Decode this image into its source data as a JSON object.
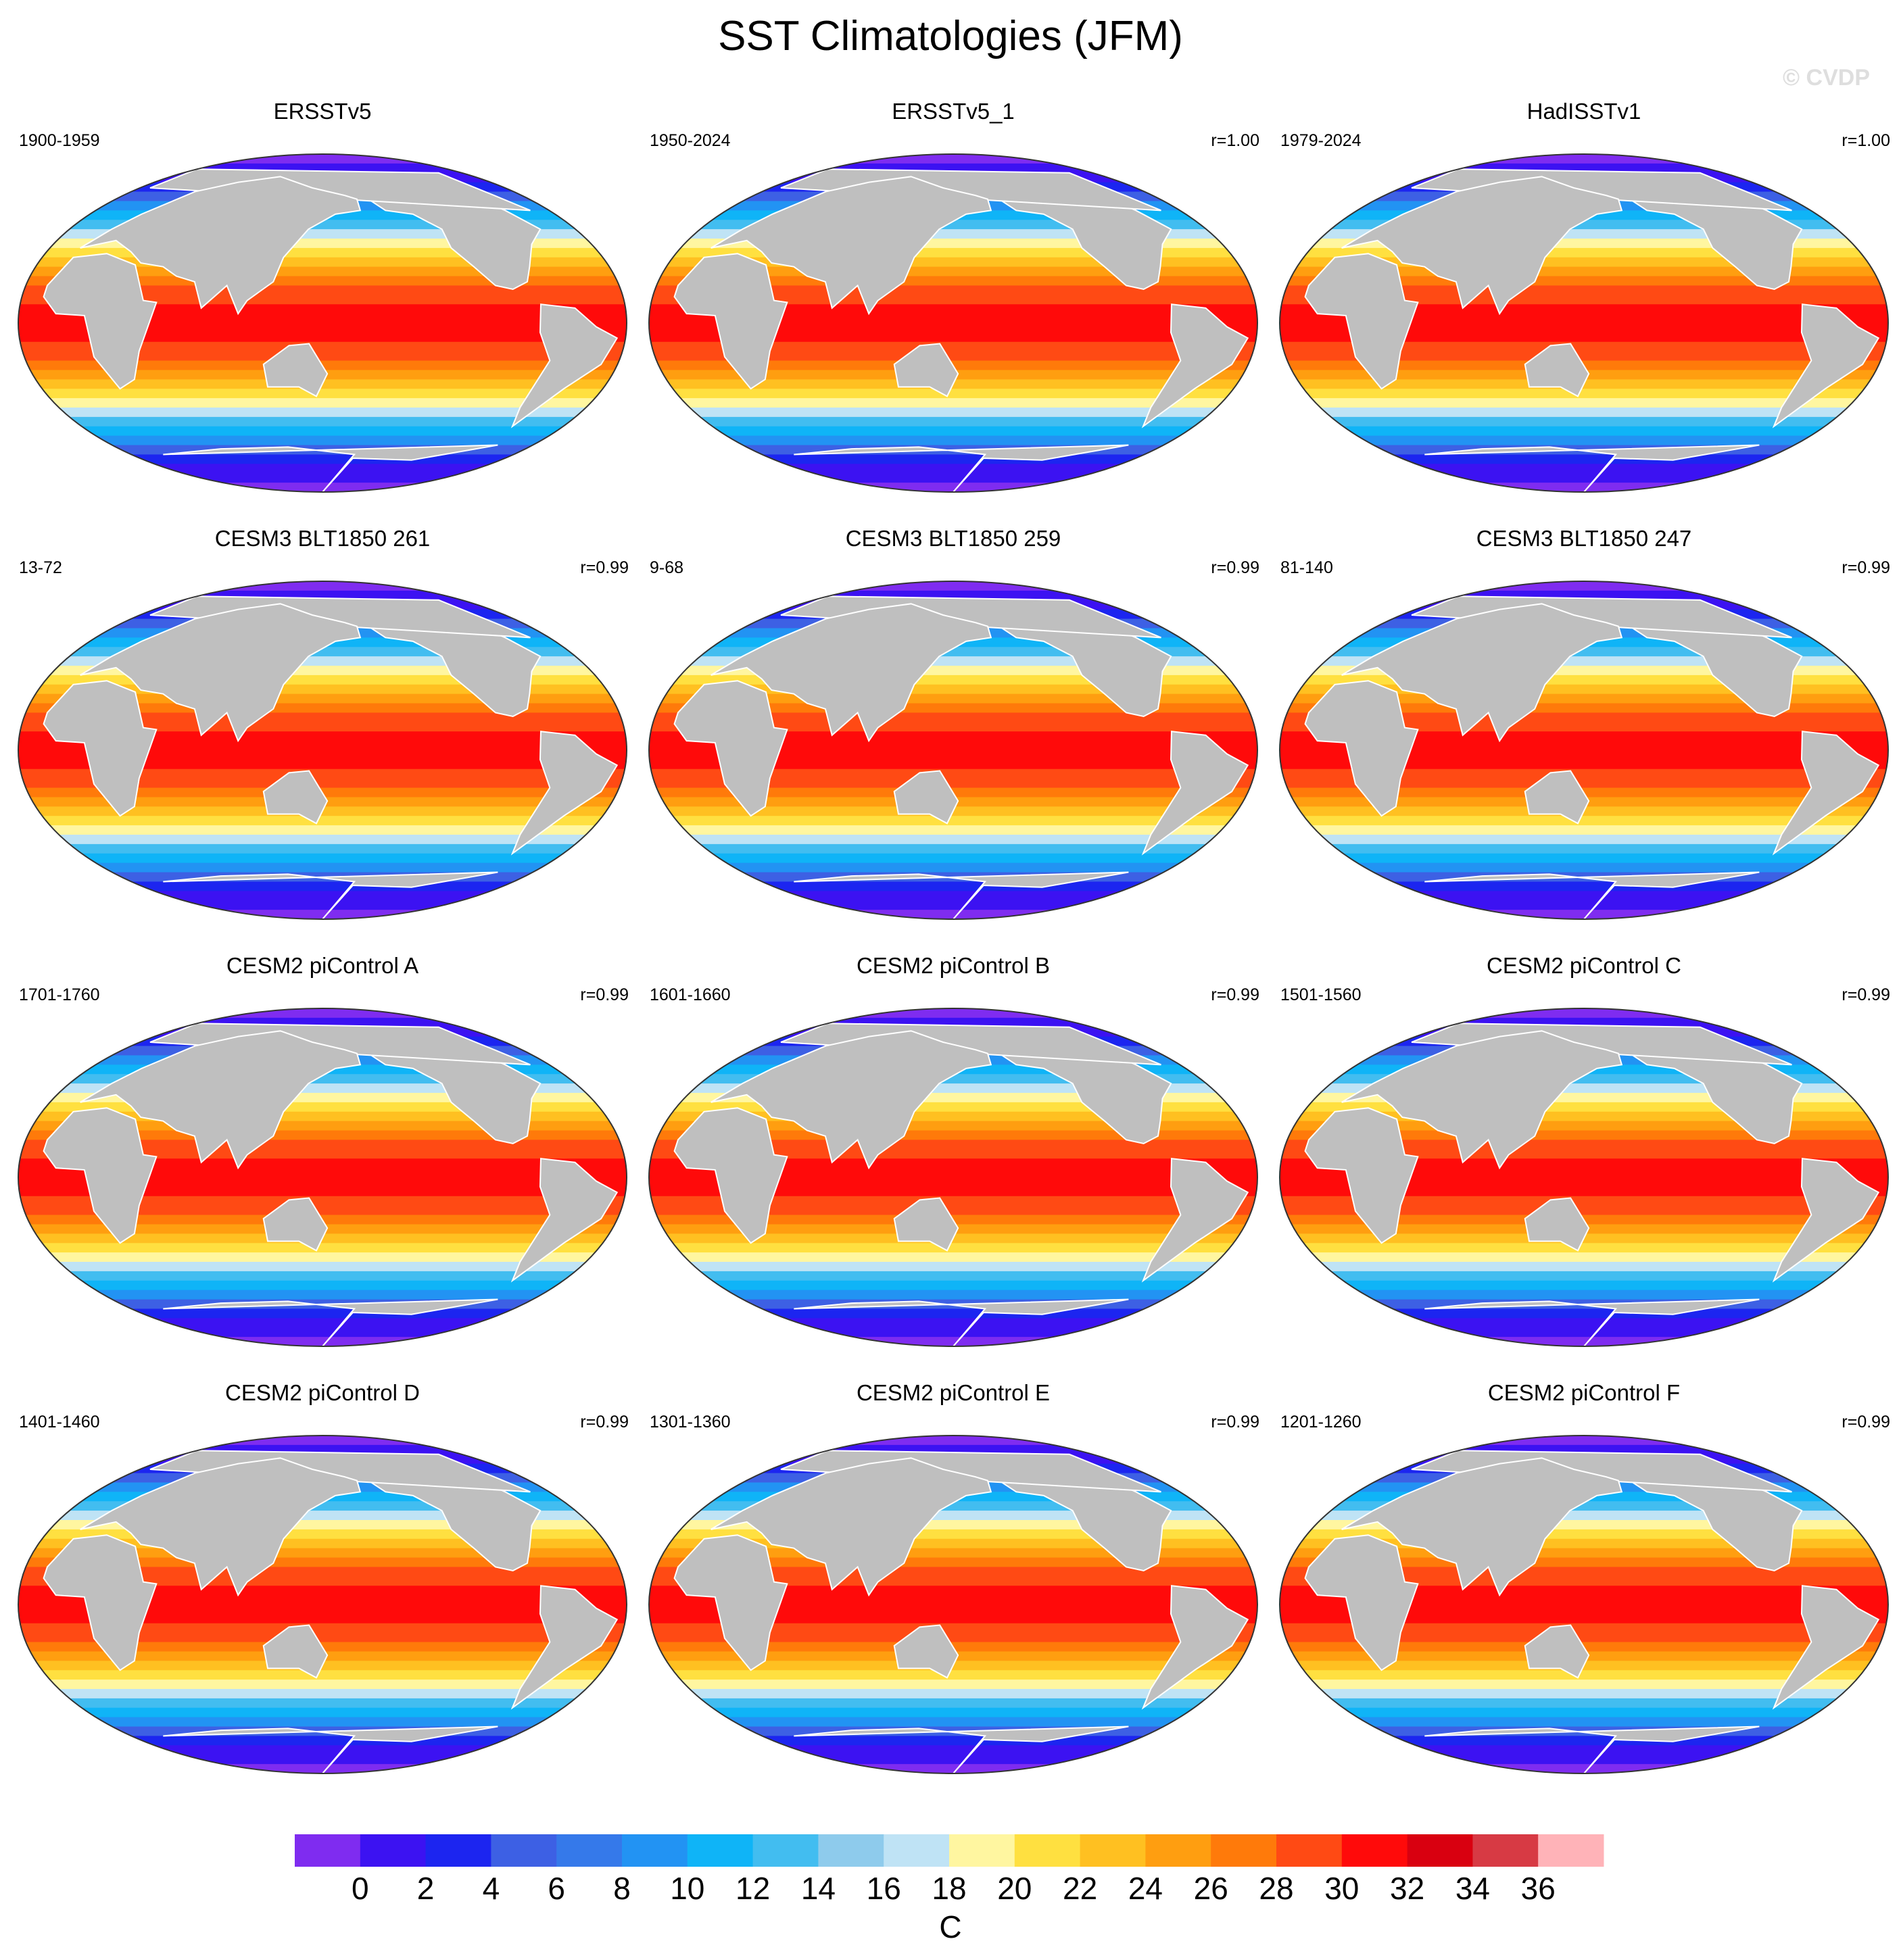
{
  "title": "SST Climatologies (JFM)",
  "watermark": "© CVDP",
  "colors": {
    "land": "#bfbfbf",
    "ocean_border": "#333333"
  },
  "panels": [
    {
      "title": "ERSSTv5",
      "period": "1900-1959",
      "corr": ""
    },
    {
      "title": "ERSSTv5_1",
      "period": "1950-2024",
      "corr": "r=1.00"
    },
    {
      "title": "HadISSTv1",
      "period": "1979-2024",
      "corr": "r=1.00"
    },
    {
      "title": "CESM3 BLT1850 261",
      "period": "13-72",
      "corr": "r=0.99"
    },
    {
      "title": "CESM3 BLT1850 259",
      "period": "9-68",
      "corr": "r=0.99"
    },
    {
      "title": "CESM3 BLT1850 247",
      "period": "81-140",
      "corr": "r=0.99"
    },
    {
      "title": "CESM2 piControl A",
      "period": "1701-1760",
      "corr": "r=0.99"
    },
    {
      "title": "CESM2 piControl B",
      "period": "1601-1660",
      "corr": "r=0.99"
    },
    {
      "title": "CESM2 piControl C",
      "period": "1501-1560",
      "corr": "r=0.99"
    },
    {
      "title": "CESM2 piControl D",
      "period": "1401-1460",
      "corr": "r=0.99"
    },
    {
      "title": "CESM2 piControl E",
      "period": "1301-1360",
      "corr": "r=0.99"
    },
    {
      "title": "CESM2 piControl F",
      "period": "1201-1260",
      "corr": "r=0.99"
    }
  ],
  "colorbar": {
    "unit": "C",
    "ticks": [
      "0",
      "2",
      "4",
      "6",
      "8",
      "10",
      "12",
      "14",
      "16",
      "18",
      "20",
      "22",
      "24",
      "26",
      "28",
      "30",
      "32",
      "34",
      "36"
    ],
    "colors": [
      "#7f2cf0",
      "#3c12f2",
      "#1c25f0",
      "#3d60e4",
      "#3579ea",
      "#2293f3",
      "#0fb4f7",
      "#42bdf0",
      "#8ecbec",
      "#bfe3f5",
      "#fff6a0",
      "#ffe040",
      "#ffc021",
      "#ff9e10",
      "#ff7a0a",
      "#ff4a14",
      "#ff0a0a",
      "#d90010",
      "#d73a44",
      "#ffb3b8"
    ]
  }
}
